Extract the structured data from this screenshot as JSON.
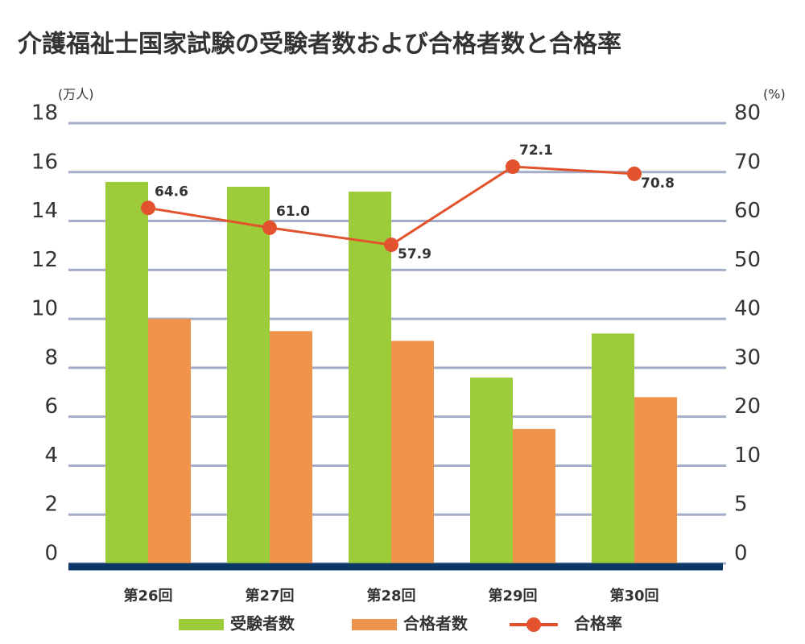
{
  "chart_data": {
    "type": "bar-line",
    "title": "介護福祉士国家試験の受験者数および合格者数と合格率",
    "y_unit": "(万人)",
    "y2_unit": "(%)",
    "categories": [
      "第26回",
      "第27回",
      "第28回",
      "第29回",
      "第30回"
    ],
    "series": [
      {
        "name": "受験者数",
        "type": "bar",
        "color": "#9dcc3b",
        "values": [
          15.6,
          15.4,
          15.2,
          7.6,
          9.4
        ]
      },
      {
        "name": "合格者数",
        "type": "bar",
        "color": "#f0944b",
        "values": [
          10.0,
          9.5,
          9.1,
          5.5,
          6.8
        ]
      },
      {
        "name": "合格率",
        "type": "line",
        "axis": "y2",
        "color": "#e2532d",
        "values": [
          64.6,
          61.0,
          57.9,
          72.1,
          70.8
        ],
        "value_labels": [
          "64.6",
          "61.0",
          "57.9",
          "72.1",
          "70.8"
        ]
      }
    ],
    "ylim": [
      0,
      18
    ],
    "yticks": [
      0,
      2,
      4,
      6,
      8,
      10,
      12,
      14,
      16,
      18
    ],
    "y2lim": [
      0,
      80
    ],
    "y2ticks": [
      0,
      {
        "value": 8.89,
        "label": "5"
      },
      {
        "value": 17.78,
        "label": "10"
      },
      {
        "value": 26.67,
        "label": "20"
      },
      {
        "value": 35.56,
        "label": "30"
      },
      {
        "value": 44.44,
        "label": "40"
      },
      {
        "value": 53.33,
        "label": "50"
      },
      {
        "value": 62.22,
        "label": "60"
      },
      {
        "value": 71.11,
        "label": "70"
      },
      80
    ],
    "grid": true,
    "legend": "bottom"
  }
}
